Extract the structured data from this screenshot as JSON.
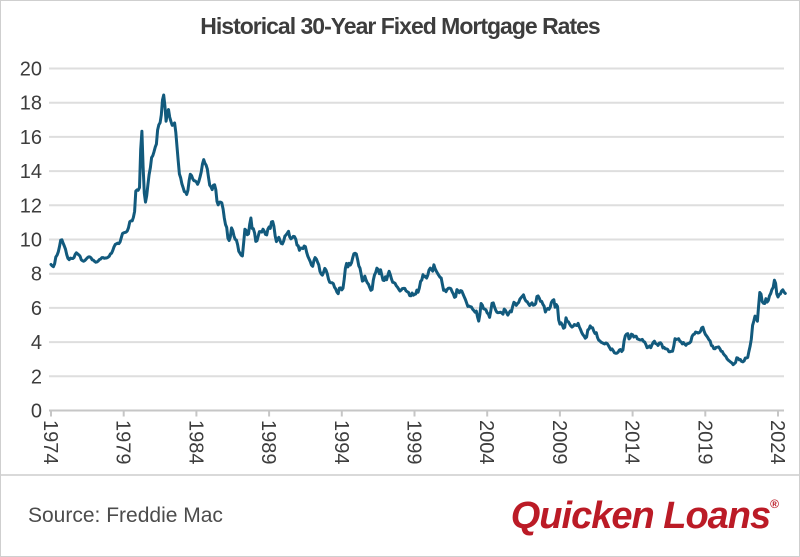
{
  "title": "Historical 30-Year Fixed Mortgage Rates",
  "footer": {
    "source": "Source: Freddie Mac",
    "logo_text": "Quicken Loans",
    "logo_mark": "®",
    "logo_color": "#bb1b26"
  },
  "chart_data": {
    "type": "line",
    "title": "Historical 30-Year Fixed Mortgage Rates",
    "xlabel": "",
    "ylabel": "",
    "legend": "none",
    "grid": true,
    "ylim": [
      0,
      20
    ],
    "y_ticks": [
      0,
      2,
      4,
      6,
      8,
      10,
      12,
      14,
      16,
      18,
      20
    ],
    "x_tick_years": [
      1974,
      1979,
      1984,
      1989,
      1994,
      1999,
      2004,
      2009,
      2014,
      2019,
      2024
    ],
    "x_start": "1974-01",
    "x_end": "2024-07",
    "frequency": "monthly",
    "line_color": "#125a7d",
    "grid_color": "#dedede",
    "axis_color": "#c6c6c6",
    "values": [
      8.54,
      8.46,
      8.41,
      8.58,
      8.97,
      9.09,
      9.28,
      9.59,
      9.96,
      9.98,
      9.79,
      9.62,
      9.43,
      9.1,
      8.89,
      8.82,
      8.91,
      8.89,
      8.89,
      8.94,
      9.13,
      9.22,
      9.15,
      9.1,
      9.02,
      8.81,
      8.76,
      8.73,
      8.77,
      8.85,
      8.93,
      8.98,
      8.98,
      8.93,
      8.81,
      8.79,
      8.72,
      8.67,
      8.69,
      8.75,
      8.83,
      8.86,
      8.94,
      8.94,
      8.9,
      8.92,
      8.92,
      8.96,
      9.02,
      9.16,
      9.2,
      9.36,
      9.57,
      9.71,
      9.74,
      9.79,
      9.76,
      9.86,
      10.11,
      10.35,
      10.39,
      10.41,
      10.43,
      10.5,
      10.69,
      11.04,
      11.09,
      11.09,
      11.3,
      11.64,
      12.83,
      12.9,
      12.88,
      13.04,
      15.28,
      16.33,
      14.26,
      12.71,
      12.19,
      12.56,
      13.2,
      13.79,
      14.21,
      14.79,
      14.9,
      15.13,
      15.4,
      15.58,
      16.4,
      16.7,
      16.83,
      17.28,
      18.16,
      18.45,
      17.82,
      16.92,
      17.4,
      17.6,
      17.16,
      16.89,
      16.68,
      16.7,
      16.82,
      16.27,
      15.43,
      14.61,
      13.83,
      13.62,
      13.25,
      13.04,
      12.8,
      12.78,
      12.63,
      12.87,
      13.43,
      13.81,
      13.73,
      13.54,
      13.44,
      13.42,
      13.37,
      13.23,
      13.39,
      13.65,
      13.94,
      14.42,
      14.67,
      14.47,
      14.35,
      14.13,
      13.64,
      13.18,
      13.08,
      12.92,
      13.17,
      13.2,
      12.91,
      12.22,
      12.03,
      12.19,
      12.19,
      12.14,
      11.78,
      11.26,
      10.88,
      10.71,
      10.08,
      9.94,
      10.14,
      10.68,
      10.51,
      10.2,
      10.01,
      9.97,
      9.7,
      9.31,
      9.2,
      9.08,
      9.04,
      9.83,
      10.6,
      10.54,
      10.28,
      10.33,
      10.89,
      11.26,
      10.65,
      10.64,
      10.38,
      9.89,
      9.93,
      10.2,
      10.46,
      10.46,
      10.43,
      10.6,
      10.48,
      10.3,
      10.27,
      10.61,
      10.73,
      10.65,
      11.03,
      11.05,
      10.77,
      10.2,
      9.88,
      9.99,
      10.13,
      9.95,
      9.77,
      9.74,
      9.9,
      10.2,
      10.27,
      10.37,
      10.48,
      10.16,
      10.04,
      10.1,
      10.18,
      10.17,
      10.01,
      9.67,
      9.64,
      9.37,
      9.5,
      9.49,
      9.47,
      9.62,
      9.58,
      9.24,
      9.01,
      8.86,
      8.71,
      8.5,
      8.43,
      8.76,
      8.94,
      8.85,
      8.67,
      8.51,
      8.13,
      7.98,
      7.92,
      8.09,
      8.31,
      8.21,
      7.99,
      7.68,
      7.5,
      7.47,
      7.47,
      7.42,
      7.21,
      7.11,
      6.92,
      6.83,
      7.16,
      7.17,
      7.06,
      7.15,
      7.68,
      8.32,
      8.6,
      8.4,
      8.61,
      8.51,
      8.64,
      8.93,
      9.17,
      9.2,
      9.15,
      8.83,
      8.46,
      8.32,
      7.96,
      7.57,
      7.61,
      7.86,
      7.64,
      7.48,
      7.38,
      7.2,
      7.03,
      7.08,
      7.62,
      7.93,
      8.07,
      8.32,
      8.25,
      8.0,
      8.23,
      7.92,
      7.62,
      7.6,
      7.82,
      7.65,
      7.9,
      8.14,
      7.94,
      7.69,
      7.5,
      7.48,
      7.43,
      7.29,
      7.21,
      7.1,
      6.99,
      7.04,
      7.13,
      7.14,
      7.14,
      7.0,
      6.95,
      6.92,
      6.72,
      6.71,
      6.87,
      6.74,
      6.79,
      6.81,
      7.04,
      6.92,
      7.15,
      7.55,
      7.63,
      7.94,
      7.82,
      7.85,
      7.74,
      7.91,
      8.21,
      8.33,
      8.24,
      8.15,
      8.52,
      8.29,
      8.15,
      8.03,
      7.91,
      7.8,
      7.75,
      7.38,
      7.03,
      7.05,
      6.95,
      7.08,
      7.15,
      7.16,
      7.13,
      6.95,
      6.82,
      6.62,
      6.66,
      7.07,
      7.0,
      6.89,
      7.01,
      6.99,
      6.81,
      6.65,
      6.49,
      6.29,
      6.09,
      6.11,
      6.07,
      6.05,
      5.92,
      5.84,
      5.75,
      5.81,
      5.48,
      5.23,
      5.63,
      6.26,
      6.15,
      5.95,
      5.93,
      5.88,
      5.71,
      5.64,
      5.45,
      5.83,
      6.27,
      6.29,
      6.06,
      5.87,
      5.75,
      5.72,
      5.73,
      5.75,
      5.71,
      5.63,
      5.93,
      5.86,
      5.72,
      5.58,
      5.7,
      5.82,
      5.77,
      6.07,
      6.33,
      6.27,
      6.15,
      6.25,
      6.32,
      6.51,
      6.6,
      6.68,
      6.76,
      6.52,
      6.4,
      6.36,
      6.24,
      6.14,
      6.22,
      6.29,
      6.16,
      6.18,
      6.26,
      6.66,
      6.7,
      6.57,
      6.38,
      6.38,
      6.21,
      6.1,
      5.76,
      5.92,
      5.97,
      5.92,
      6.04,
      6.32,
      6.43,
      6.48,
      6.04,
      6.2,
      6.09,
      5.29,
      5.05,
      5.13,
      5.0,
      4.81,
      4.86,
      5.42,
      5.22,
      5.19,
      5.06,
      4.95,
      4.88,
      4.93,
      5.03,
      4.99,
      4.97,
      5.1,
      4.89,
      4.74,
      4.56,
      4.43,
      4.35,
      4.23,
      4.3,
      4.71,
      4.76,
      4.95,
      4.84,
      4.84,
      4.64,
      4.51,
      4.55,
      4.27,
      4.11,
      4.07,
      3.99,
      3.96,
      3.92,
      3.89,
      3.95,
      3.91,
      3.8,
      3.68,
      3.55,
      3.6,
      3.5,
      3.38,
      3.35,
      3.35,
      3.41,
      3.53,
      3.57,
      3.45,
      3.54,
      4.07,
      4.37,
      4.46,
      4.49,
      4.19,
      4.26,
      4.46,
      4.43,
      4.3,
      4.34,
      4.34,
      4.19,
      4.16,
      4.13,
      4.12,
      4.16,
      4.04,
      4.0,
      3.86,
      3.67,
      3.71,
      3.77,
      3.67,
      3.84,
      3.98,
      4.05,
      3.91,
      3.89,
      3.8,
      3.94,
      3.96,
      3.87,
      3.66,
      3.69,
      3.61,
      3.6,
      3.57,
      3.44,
      3.44,
      3.46,
      3.47,
      3.77,
      4.2,
      4.15,
      4.17,
      4.2,
      4.05,
      4.01,
      3.9,
      3.97,
      3.88,
      3.81,
      3.9,
      3.92,
      3.95,
      4.03,
      4.33,
      4.44,
      4.47,
      4.59,
      4.57,
      4.53,
      4.55,
      4.63,
      4.83,
      4.87,
      4.64,
      4.46,
      4.37,
      4.27,
      4.14,
      4.07,
      3.8,
      3.77,
      3.62,
      3.61,
      3.69,
      3.7,
      3.72,
      3.62,
      3.47,
      3.45,
      3.31,
      3.23,
      3.16,
      3.02,
      2.94,
      2.89,
      2.83,
      2.77,
      2.68,
      2.74,
      2.81,
      3.08,
      3.06,
      2.96,
      2.98,
      2.87,
      2.84,
      2.9,
      3.07,
      3.07,
      3.1,
      3.45,
      3.76,
      4.17,
      4.98,
      5.23,
      5.52,
      5.41,
      5.22,
      6.11,
      6.9,
      6.81,
      6.36,
      6.27,
      6.26,
      6.54,
      6.34,
      6.43,
      6.71,
      6.84,
      7.07,
      7.2,
      7.62,
      7.44,
      6.82,
      6.64,
      6.78,
      6.82,
      6.99,
      7.06,
      6.92,
      6.85
    ]
  }
}
